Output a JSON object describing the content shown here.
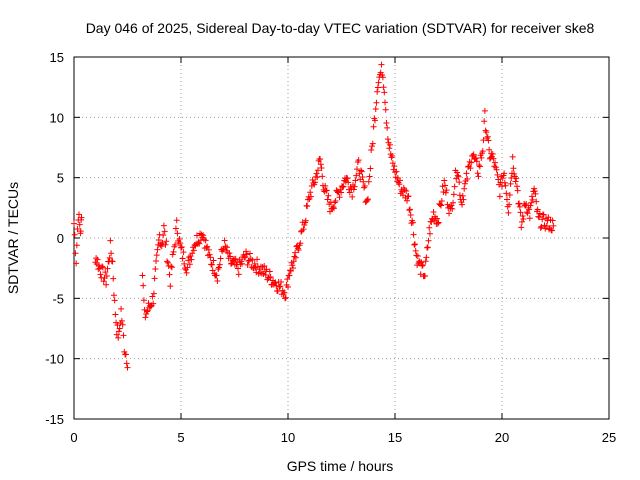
{
  "chart_data": {
    "type": "scatter",
    "title": "Day 046 of 2025, Sidereal Day-to-day VTEC variation (SDTVAR) for receiver ske8",
    "xlabel": "GPS time / hours",
    "ylabel": "SDTVAR / TECUs",
    "xlim": [
      0,
      25
    ],
    "ylim": [
      -15,
      15
    ],
    "xticks": [
      "0",
      "5",
      "10",
      "15",
      "20",
      "25"
    ],
    "yticks": [
      "15",
      "10",
      "5",
      "0",
      "-5",
      "-10",
      "-15"
    ],
    "grid": true,
    "marker": "+",
    "series": [
      {
        "name": "SDTVAR",
        "color": "#ff0000",
        "trend": {
          "x": [
            0,
            0.1,
            0.2,
            0.3,
            0.35,
            1.0,
            1.2,
            1.5,
            1.7,
            1.8,
            1.9,
            2.0,
            2.1,
            2.2,
            2.35,
            2.5,
            3.2,
            3.3,
            3.7,
            3.8,
            4.0,
            4.1,
            4.2,
            4.5,
            4.8,
            5.0,
            5.3,
            5.6,
            6.0,
            6.3,
            6.7,
            7.0,
            7.3,
            7.7,
            8.0,
            8.3,
            8.7,
            9.0,
            9.3,
            9.6,
            9.9,
            10.1,
            10.3,
            10.5,
            10.8,
            11.0,
            11.3,
            11.5,
            11.7,
            12.0,
            12.3,
            12.7,
            13.0,
            13.3,
            13.7,
            14.0,
            14.2,
            14.4,
            14.5,
            14.6,
            14.7,
            14.9,
            15.1,
            15.3,
            15.6,
            15.8,
            16.0,
            16.2,
            16.4,
            16.6,
            16.8,
            17.0,
            17.3,
            17.6,
            17.9,
            18.1,
            18.3,
            18.6,
            18.9,
            19.1,
            19.2,
            19.4,
            19.6,
            19.9,
            20.1,
            20.3,
            20.5,
            20.7,
            20.9,
            21.1,
            21.3,
            21.5,
            21.7,
            22.2,
            22.4
          ],
          "y": [
            1.2,
            -1.8,
            2.0,
            0.5,
            1.5,
            -1.5,
            -2.5,
            -3.5,
            -0.8,
            -2.0,
            -5.5,
            -7.5,
            -8.2,
            -6.0,
            -9.0,
            -10.2,
            -3.0,
            -6.5,
            -5.0,
            -3.0,
            0.2,
            -0.5,
            0.8,
            -3.5,
            1.0,
            -1.0,
            -2.5,
            -0.5,
            0.5,
            -1.5,
            -3.0,
            -0.5,
            -2.0,
            -2.5,
            -1.5,
            -2.0,
            -2.5,
            -3.0,
            -3.5,
            -4.0,
            -4.5,
            -2.5,
            -2.0,
            -0.5,
            1.5,
            3.5,
            5.0,
            6.5,
            4.0,
            2.5,
            3.5,
            5.0,
            4.0,
            6.0,
            3.0,
            9.0,
            13.0,
            14.0,
            12.5,
            10.0,
            8.0,
            6.0,
            5.0,
            4.0,
            3.5,
            1.5,
            -1.5,
            -2.5,
            -3.0,
            0.5,
            2.0,
            1.5,
            4.5,
            2.0,
            6.0,
            3.0,
            4.5,
            7.0,
            5.5,
            7.5,
            10.0,
            7.0,
            6.5,
            4.0,
            5.5,
            2.5,
            6.5,
            4.5,
            1.0,
            3.0,
            2.0,
            4.0,
            1.5,
            1.2,
            1.0
          ]
        },
        "gaps_after_x": [
          0.35,
          2.5,
          22.4
        ]
      }
    ]
  }
}
